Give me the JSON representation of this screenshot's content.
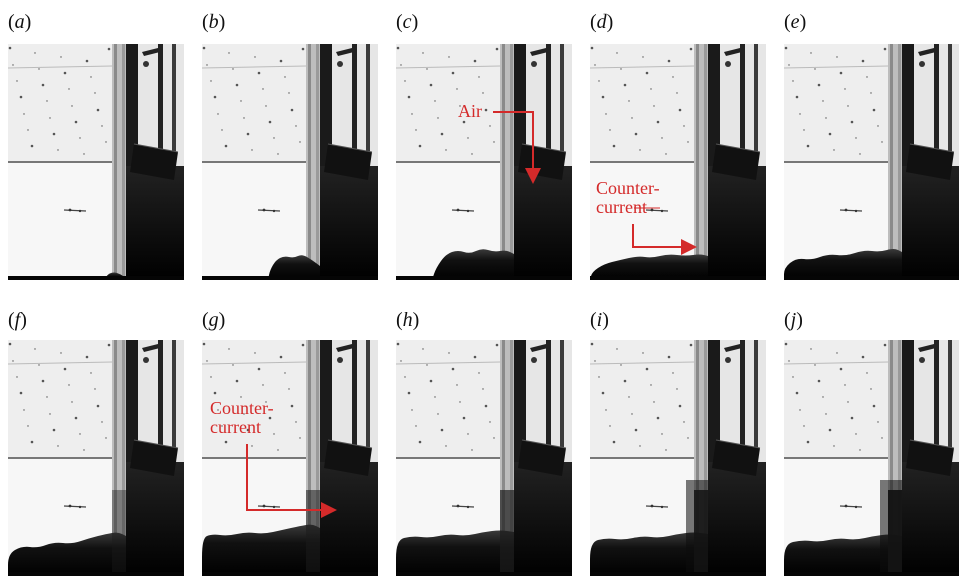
{
  "figure": {
    "panels": [
      {
        "id": "a",
        "label": "a",
        "stage": 0
      },
      {
        "id": "b",
        "label": "b",
        "stage": 1
      },
      {
        "id": "c",
        "label": "c",
        "stage": 2
      },
      {
        "id": "d",
        "label": "d",
        "stage": 3
      },
      {
        "id": "e",
        "label": "e",
        "stage": 4
      },
      {
        "id": "f",
        "label": "f",
        "stage": 5
      },
      {
        "id": "g",
        "label": "g",
        "stage": 6
      },
      {
        "id": "h",
        "label": "h",
        "stage": 7
      },
      {
        "id": "i",
        "label": "i",
        "stage": 8
      },
      {
        "id": "j",
        "label": "j",
        "stage": 9
      }
    ],
    "annotations": {
      "air": "Air",
      "counter_current_d": [
        "Counter-",
        "current"
      ],
      "counter_current_g": [
        "Counter-",
        "current"
      ]
    },
    "colors": {
      "annotation": "#d42a2a",
      "fluid": "#050505",
      "background": "#f7f7f7"
    }
  }
}
